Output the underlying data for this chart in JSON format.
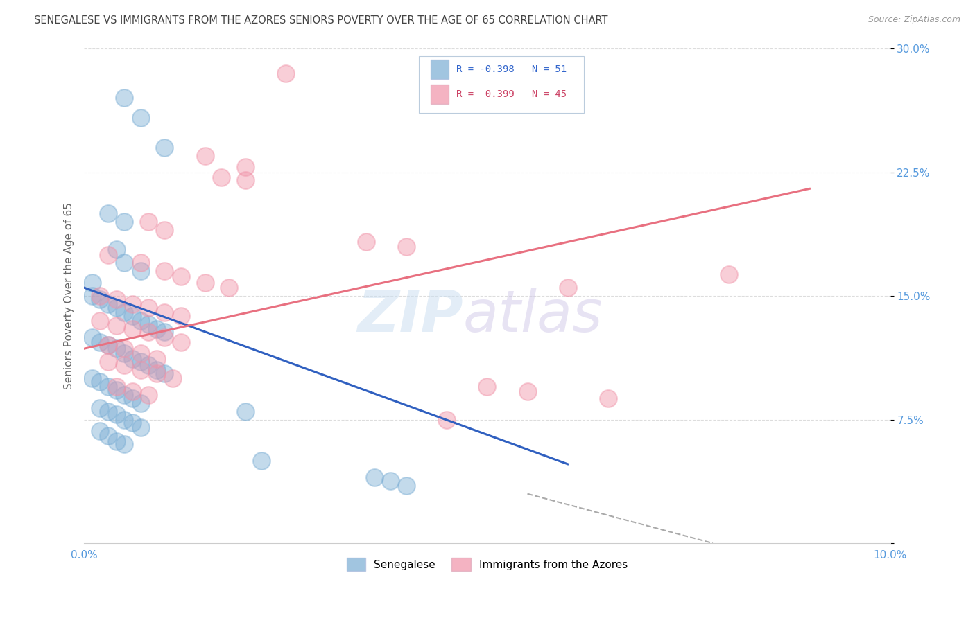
{
  "title": "SENEGALESE VS IMMIGRANTS FROM THE AZORES SENIORS POVERTY OVER THE AGE OF 65 CORRELATION CHART",
  "source": "Source: ZipAtlas.com",
  "ylabel": "Seniors Poverty Over the Age of 65",
  "xlim": [
    0.0,
    0.1
  ],
  "ylim": [
    0.0,
    0.3
  ],
  "xticks": [
    0.0,
    0.02,
    0.04,
    0.06,
    0.08,
    0.1
  ],
  "xtick_labels": [
    "0.0%",
    "",
    "",
    "",
    "",
    "10.0%"
  ],
  "yticks": [
    0.0,
    0.075,
    0.15,
    0.225,
    0.3
  ],
  "ytick_labels": [
    "",
    "7.5%",
    "15.0%",
    "22.5%",
    "30.0%"
  ],
  "legend_entries": [
    {
      "label": "Senegalese",
      "R": "-0.398",
      "N": "51",
      "color": "#aac4e8"
    },
    {
      "label": "Immigrants from the Azores",
      "R": "0.399",
      "N": "45",
      "color": "#f4b8c8"
    }
  ],
  "blue_scatter_x": [
    0.005,
    0.007,
    0.01,
    0.003,
    0.005,
    0.004,
    0.005,
    0.007,
    0.001,
    0.001,
    0.002,
    0.003,
    0.004,
    0.005,
    0.006,
    0.007,
    0.008,
    0.009,
    0.01,
    0.001,
    0.002,
    0.003,
    0.004,
    0.005,
    0.006,
    0.007,
    0.008,
    0.009,
    0.01,
    0.001,
    0.002,
    0.003,
    0.004,
    0.005,
    0.006,
    0.007,
    0.002,
    0.003,
    0.004,
    0.005,
    0.006,
    0.007,
    0.002,
    0.003,
    0.004,
    0.005,
    0.02,
    0.022,
    0.036,
    0.038,
    0.04
  ],
  "blue_scatter_y": [
    0.27,
    0.258,
    0.24,
    0.2,
    0.195,
    0.178,
    0.17,
    0.165,
    0.158,
    0.15,
    0.148,
    0.145,
    0.143,
    0.14,
    0.138,
    0.135,
    0.133,
    0.13,
    0.128,
    0.125,
    0.122,
    0.12,
    0.118,
    0.115,
    0.112,
    0.11,
    0.108,
    0.105,
    0.103,
    0.1,
    0.098,
    0.095,
    0.093,
    0.09,
    0.088,
    0.085,
    0.082,
    0.08,
    0.078,
    0.075,
    0.073,
    0.07,
    0.068,
    0.065,
    0.062,
    0.06,
    0.08,
    0.05,
    0.04,
    0.038,
    0.035
  ],
  "pink_scatter_x": [
    0.025,
    0.015,
    0.02,
    0.017,
    0.02,
    0.008,
    0.01,
    0.035,
    0.04,
    0.003,
    0.007,
    0.01,
    0.012,
    0.015,
    0.018,
    0.002,
    0.004,
    0.006,
    0.008,
    0.01,
    0.012,
    0.002,
    0.004,
    0.006,
    0.008,
    0.01,
    0.012,
    0.003,
    0.005,
    0.007,
    0.009,
    0.003,
    0.005,
    0.007,
    0.009,
    0.011,
    0.004,
    0.006,
    0.008,
    0.06,
    0.08,
    0.045,
    0.05,
    0.055,
    0.065
  ],
  "pink_scatter_y": [
    0.285,
    0.235,
    0.228,
    0.222,
    0.22,
    0.195,
    0.19,
    0.183,
    0.18,
    0.175,
    0.17,
    0.165,
    0.162,
    0.158,
    0.155,
    0.15,
    0.148,
    0.145,
    0.143,
    0.14,
    0.138,
    0.135,
    0.132,
    0.13,
    0.128,
    0.125,
    0.122,
    0.12,
    0.118,
    0.115,
    0.112,
    0.11,
    0.108,
    0.105,
    0.103,
    0.1,
    0.095,
    0.092,
    0.09,
    0.155,
    0.163,
    0.075,
    0.095,
    0.092,
    0.088
  ],
  "blue_line_x": [
    0.0,
    0.06
  ],
  "blue_line_y": [
    0.155,
    0.048
  ],
  "pink_line_x": [
    0.0,
    0.09
  ],
  "pink_line_y": [
    0.118,
    0.215
  ],
  "dash_line_x": [
    0.055,
    0.078
  ],
  "dash_line_y": [
    0.03,
    0.0
  ],
  "watermark_text": "ZIP",
  "watermark_text2": "atlas",
  "background_color": "#ffffff",
  "grid_color": "#dddddd",
  "title_color": "#444444",
  "source_color": "#999999",
  "blue_dot_color": "#7aadd4",
  "pink_dot_color": "#f093a8",
  "blue_line_color": "#3060c0",
  "pink_line_color": "#e87080",
  "ylabel_color": "#666666",
  "ytick_color": "#5599dd",
  "xtick_color": "#5599dd"
}
